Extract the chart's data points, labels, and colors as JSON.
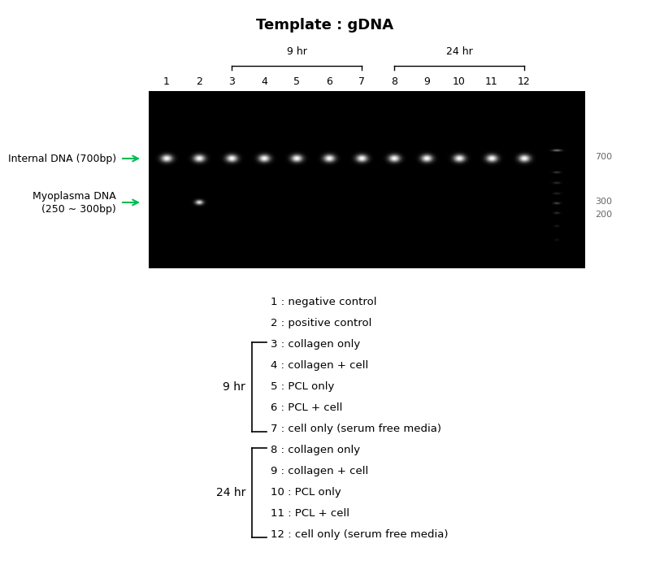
{
  "title": "Template : gDNA",
  "title_fontsize": 13,
  "title_fontweight": "bold",
  "gel_bg_color": "#000000",
  "lane_labels": [
    "1",
    "2",
    "3",
    "4",
    "5",
    "6",
    "7",
    "8",
    "9",
    "10",
    "11",
    "12"
  ],
  "group_9hr_label": "9 hr",
  "group_24hr_label": "24 hr",
  "arrow_color": "#00bb55",
  "left_label_internal": "Internal DNA (700bp)",
  "left_label_myco_line1": "Myoplasma DNA",
  "left_label_myco_line2": "(250 ∼ 300bp)",
  "right_label_700": "700",
  "right_label_300": "300",
  "right_label_200": "200",
  "legend_lines": [
    "1 : negative control",
    "2 : positive control",
    "3 : collagen only",
    "4 : collagen + cell",
    "5 : PCL only",
    "6 : PCL + cell",
    "7 : cell only (serum free media)",
    "8 : collagen only",
    "9 : collagen + cell",
    "10 : PCL only",
    "11 : PCL + cell",
    "12 : cell only (serum free media)"
  ]
}
